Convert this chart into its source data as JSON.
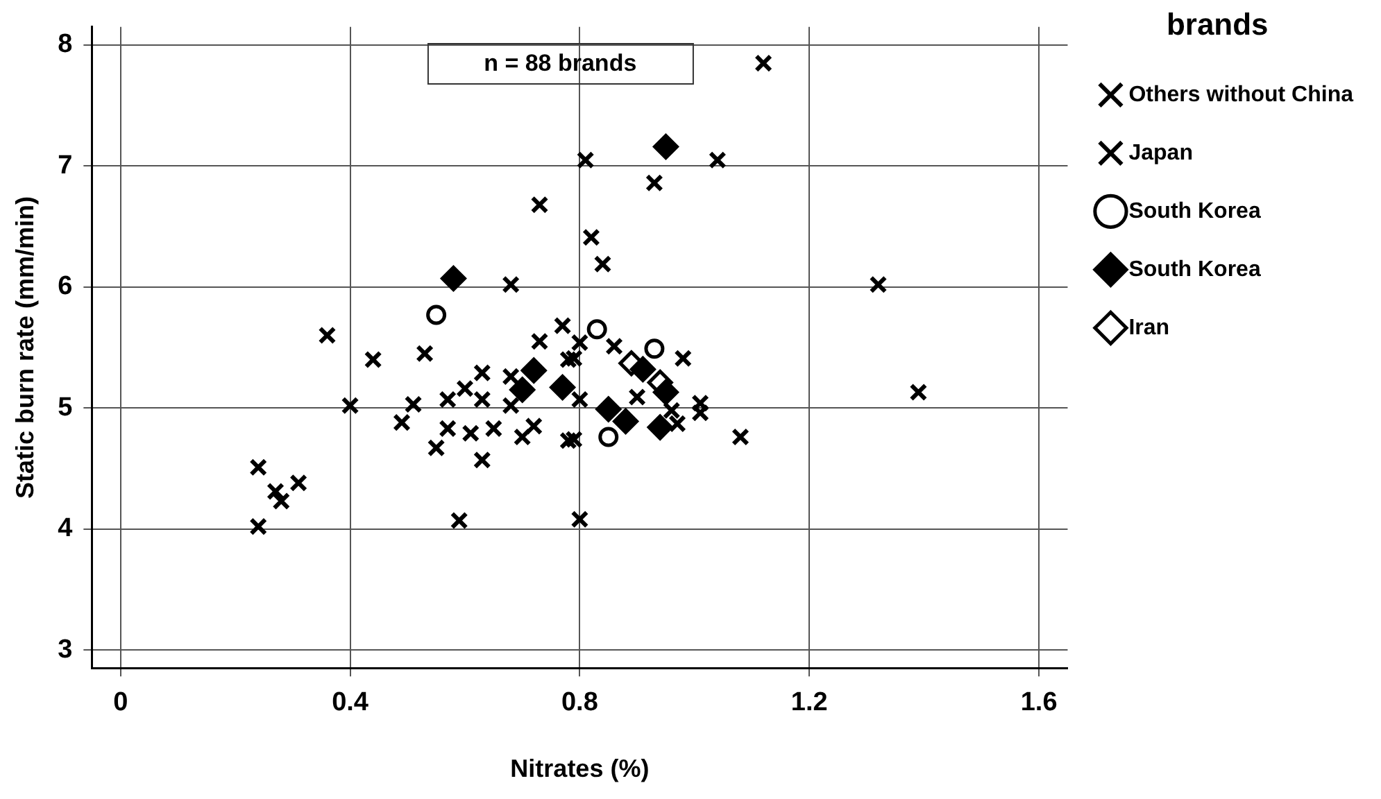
{
  "chart_data": {
    "type": "scatter",
    "xlabel": "Nitrates (%)",
    "ylabel": "Static burn rate (mm/min)",
    "legend_title": "brands",
    "annotations": [
      "n = 88 brands"
    ],
    "xlim": [
      -0.05,
      1.65
    ],
    "ylim": [
      2.85,
      8.15
    ],
    "xticks": [
      0,
      0.4,
      0.8,
      1.2,
      1.6
    ],
    "yticks": [
      3,
      4,
      5,
      6,
      7,
      8
    ],
    "grid": true,
    "legend": "right",
    "series": [
      {
        "name": "Others without China",
        "color": "#000000",
        "marker": "cross",
        "x": [
          1.12,
          1.04,
          0.93,
          0.81,
          0.73,
          0.82,
          0.84,
          1.32,
          0.68,
          0.36,
          0.44,
          0.53,
          0.4,
          0.51,
          0.49,
          0.57,
          0.55,
          0.57,
          0.61,
          0.63,
          0.65,
          0.63,
          0.63,
          0.6,
          0.7,
          0.72,
          0.68,
          0.73,
          0.77,
          0.78,
          0.68,
          0.78,
          0.24,
          0.27,
          0.28,
          0.31,
          0.24,
          0.59,
          0.8,
          0.8,
          0.79,
          0.86,
          0.98,
          0.8,
          0.9,
          1.01,
          1.01,
          0.97,
          0.96,
          0.79,
          1.08,
          1.39
        ],
        "values": [
          7.85,
          7.05,
          6.86,
          7.05,
          6.68,
          6.41,
          6.19,
          6.02,
          6.02,
          5.6,
          5.4,
          5.45,
          5.02,
          5.03,
          4.88,
          5.07,
          4.67,
          4.83,
          4.79,
          4.57,
          4.83,
          5.07,
          5.29,
          5.16,
          4.76,
          4.85,
          5.02,
          5.55,
          5.68,
          5.4,
          5.26,
          4.73,
          4.51,
          4.31,
          4.23,
          4.38,
          4.02,
          4.07,
          4.08,
          5.54,
          5.41,
          5.51,
          5.41,
          5.07,
          5.09,
          5.04,
          4.96,
          4.87,
          4.98,
          4.74,
          4.76,
          5.13
        ]
      },
      {
        "name": "Japan",
        "color": "#000000",
        "marker": "cross"
      },
      {
        "name": "South Korea",
        "color": "#ffffff",
        "marker": "circle",
        "x": [
          0.55,
          0.83,
          0.93,
          0.85
        ],
        "values": [
          5.77,
          5.65,
          5.49,
          4.76
        ]
      },
      {
        "name": "South Korea",
        "color": "#000000",
        "marker": "diamond",
        "x": [
          0.58,
          0.95,
          0.7,
          0.72,
          0.77,
          0.91,
          0.95,
          0.85,
          0.88,
          0.94
        ],
        "values": [
          6.07,
          7.16,
          5.15,
          5.31,
          5.17,
          5.32,
          5.13,
          4.99,
          4.89,
          4.84
        ]
      },
      {
        "name": "Iran",
        "color": "#ffffff",
        "marker": "diamond",
        "x": [
          0.89,
          0.94
        ],
        "values": [
          5.37,
          5.21
        ]
      }
    ]
  }
}
